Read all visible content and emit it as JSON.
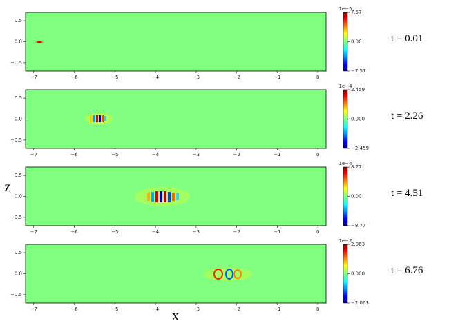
{
  "chart_data": [
    {
      "type": "heatmap",
      "xlim": [
        -7.2,
        0.2
      ],
      "ylim": [
        -0.7,
        0.7
      ],
      "xticks": [
        {
          "value": -7,
          "label": "−7"
        },
        {
          "value": -6,
          "label": "−6"
        },
        {
          "value": -5,
          "label": "−5"
        },
        {
          "value": -4,
          "label": "−4"
        },
        {
          "value": -3,
          "label": "−3"
        },
        {
          "value": -2,
          "label": "−2"
        },
        {
          "value": -1,
          "label": "−1"
        },
        0
      ],
      "yticks": [
        {
          "value": -0.5,
          "label": "−0.5"
        },
        {
          "value": 0,
          "label": "0.0"
        },
        {
          "value": 0.5,
          "label": "0.5"
        }
      ],
      "colorbar": {
        "scale_label": "1e−5",
        "lim": [
          -7.57,
          7.57
        ],
        "ticks": [
          {
            "value": -7.57,
            "label": "−7.57"
          },
          {
            "value": 0,
            "label": "0.00"
          },
          7.57
        ]
      },
      "annotation": "t = 0.01"
    },
    {
      "type": "heatmap",
      "xlim": [
        -7.2,
        0.2
      ],
      "ylim": [
        -0.7,
        0.7
      ],
      "xticks": [
        {
          "value": -7,
          "label": "−7"
        },
        {
          "value": -6,
          "label": "−6"
        },
        {
          "value": -5,
          "label": "−5"
        },
        {
          "value": -4,
          "label": "−4"
        },
        {
          "value": -3,
          "label": "−3"
        },
        {
          "value": -2,
          "label": "−2"
        },
        {
          "value": -1,
          "label": "−1"
        },
        0
      ],
      "yticks": [
        {
          "value": -0.5,
          "label": "−0.5"
        },
        {
          "value": 0,
          "label": "0.0"
        },
        {
          "value": 0.5,
          "label": "0.5"
        }
      ],
      "colorbar": {
        "scale_label": "1e−4",
        "lim": [
          -2.459,
          2.459
        ],
        "ticks": [
          {
            "value": -2.459,
            "label": "−2.459"
          },
          {
            "value": 0,
            "label": "0.000"
          },
          2.459
        ]
      },
      "annotation": "t = 2.26"
    },
    {
      "type": "heatmap",
      "xlim": [
        -7.2,
        0.2
      ],
      "ylim": [
        -0.7,
        0.7
      ],
      "ylabel": "z",
      "xticks": [
        {
          "value": -7,
          "label": "−7"
        },
        {
          "value": -6,
          "label": "−6"
        },
        {
          "value": -5,
          "label": "−5"
        },
        {
          "value": -4,
          "label": "−4"
        },
        {
          "value": -3,
          "label": "−3"
        },
        {
          "value": -2,
          "label": "−2"
        },
        {
          "value": -1,
          "label": "−1"
        },
        0
      ],
      "yticks": [
        {
          "value": -0.5,
          "label": "−0.5"
        },
        {
          "value": 0,
          "label": "0.0"
        },
        {
          "value": 0.5,
          "label": "0.5"
        }
      ],
      "colorbar": {
        "scale_label": "1e−4",
        "lim": [
          -8.77,
          8.77
        ],
        "ticks": [
          {
            "value": -8.77,
            "label": "−8.77"
          },
          {
            "value": 0,
            "label": "0.00"
          },
          8.77
        ]
      },
      "annotation": "t = 4.51"
    },
    {
      "type": "heatmap",
      "xlim": [
        -7.2,
        0.2
      ],
      "ylim": [
        -0.7,
        0.7
      ],
      "xlabel": "x",
      "xticks": [
        {
          "value": -7,
          "label": "−7"
        },
        {
          "value": -6,
          "label": "−6"
        },
        {
          "value": -5,
          "label": "−5"
        },
        {
          "value": -4,
          "label": "−4"
        },
        {
          "value": -3,
          "label": "−3"
        },
        {
          "value": -2,
          "label": "−2"
        },
        {
          "value": -1,
          "label": "−1"
        },
        0
      ],
      "yticks": [
        {
          "value": -0.5,
          "label": "−0.5"
        },
        {
          "value": 0,
          "label": "0.0"
        },
        {
          "value": 0.5,
          "label": "0.5"
        }
      ],
      "colorbar": {
        "scale_label": "1e−2",
        "lim": [
          -2.063,
          2.063
        ],
        "ticks": [
          {
            "value": -2.063,
            "label": "−2.063"
          },
          {
            "value": 0,
            "label": "0.000"
          },
          2.063
        ]
      },
      "annotation": "t = 6.76"
    }
  ]
}
